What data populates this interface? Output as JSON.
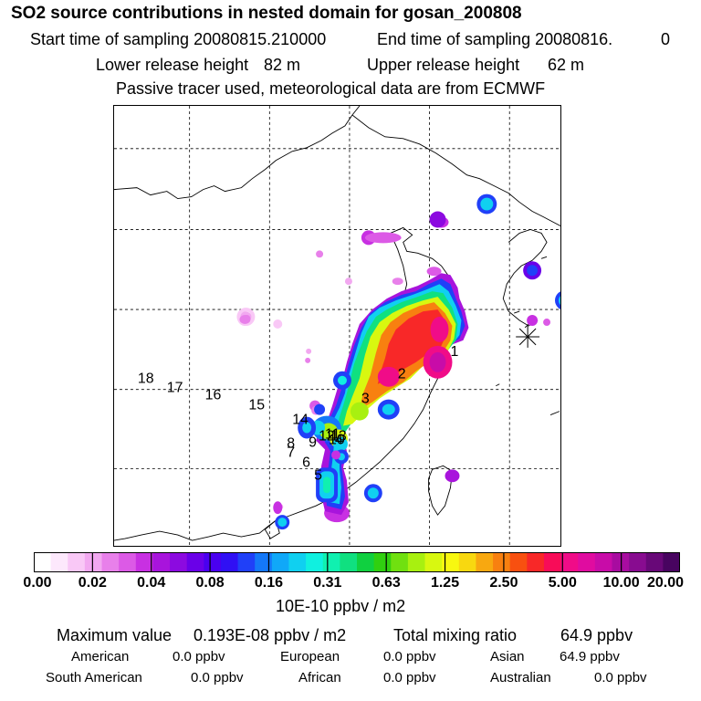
{
  "header": {
    "title": "SO2 source contributions in nested domain for gosan_200808",
    "start_label": "Start time of sampling 20080815.210000",
    "end_label": "End time of sampling 20080816.",
    "end_value": "0",
    "lower_label": "Lower release height",
    "lower_value": "82 m",
    "upper_label": "Upper release height",
    "upper_value": "62 m",
    "tracer_note": "Passive tracer used, meteorological data are from ECMWF"
  },
  "map": {
    "region_labels": [
      "1",
      "2",
      "3",
      "4",
      "5",
      "6",
      "7",
      "8",
      "9",
      "10",
      "11",
      "12",
      "13",
      "14",
      "15",
      "16",
      "17",
      "18"
    ],
    "receptor_marker": "asterisk"
  },
  "colorbar": {
    "tick_labels": [
      "0.00",
      "0.02",
      "0.04",
      "0.08",
      "0.16",
      "0.31",
      "0.63",
      "1.25",
      "2.50",
      "5.00",
      "10.00",
      "20.00"
    ],
    "colors": [
      "#ffffff",
      "#fde8fc",
      "#f9c8f6",
      "#f2a8f0",
      "#e880ea",
      "#dc5ae6",
      "#c830e2",
      "#a814dc",
      "#8c0ae0",
      "#6a00e8",
      "#4a00f0",
      "#3010f4",
      "#2040f8",
      "#1478f8",
      "#10a8f8",
      "#10d0f0",
      "#10f0e0",
      "#10f0b0",
      "#10e080",
      "#10d040",
      "#30d010",
      "#70e010",
      "#a8f010",
      "#d8f810",
      "#f8f810",
      "#f8d810",
      "#f8a810",
      "#f88010",
      "#f85010",
      "#f82828",
      "#f80c58",
      "#f00c88",
      "#e00ca0",
      "#c80ca8",
      "#a80ca0",
      "#880c90",
      "#680878",
      "#480460"
    ],
    "unit": "10E-10 ppbv / m2"
  },
  "summary": {
    "max_label": "Maximum value",
    "max_value": "0.193E-08 ppbv / m2",
    "total_label": "Total mixing ratio",
    "total_value": "64.9 ppbv",
    "american_label": "American",
    "american_value": "0.0 ppbv",
    "european_label": "European",
    "european_value": "0.0 ppbv",
    "asian_label": "Asian",
    "asian_value": "64.9 ppbv",
    "south_american_label": "South American",
    "south_american_value": "0.0 ppbv",
    "african_label": "African",
    "african_value": "0.0 ppbv",
    "australian_label": "Australian",
    "australian_value": "0.0 ppbv"
  }
}
